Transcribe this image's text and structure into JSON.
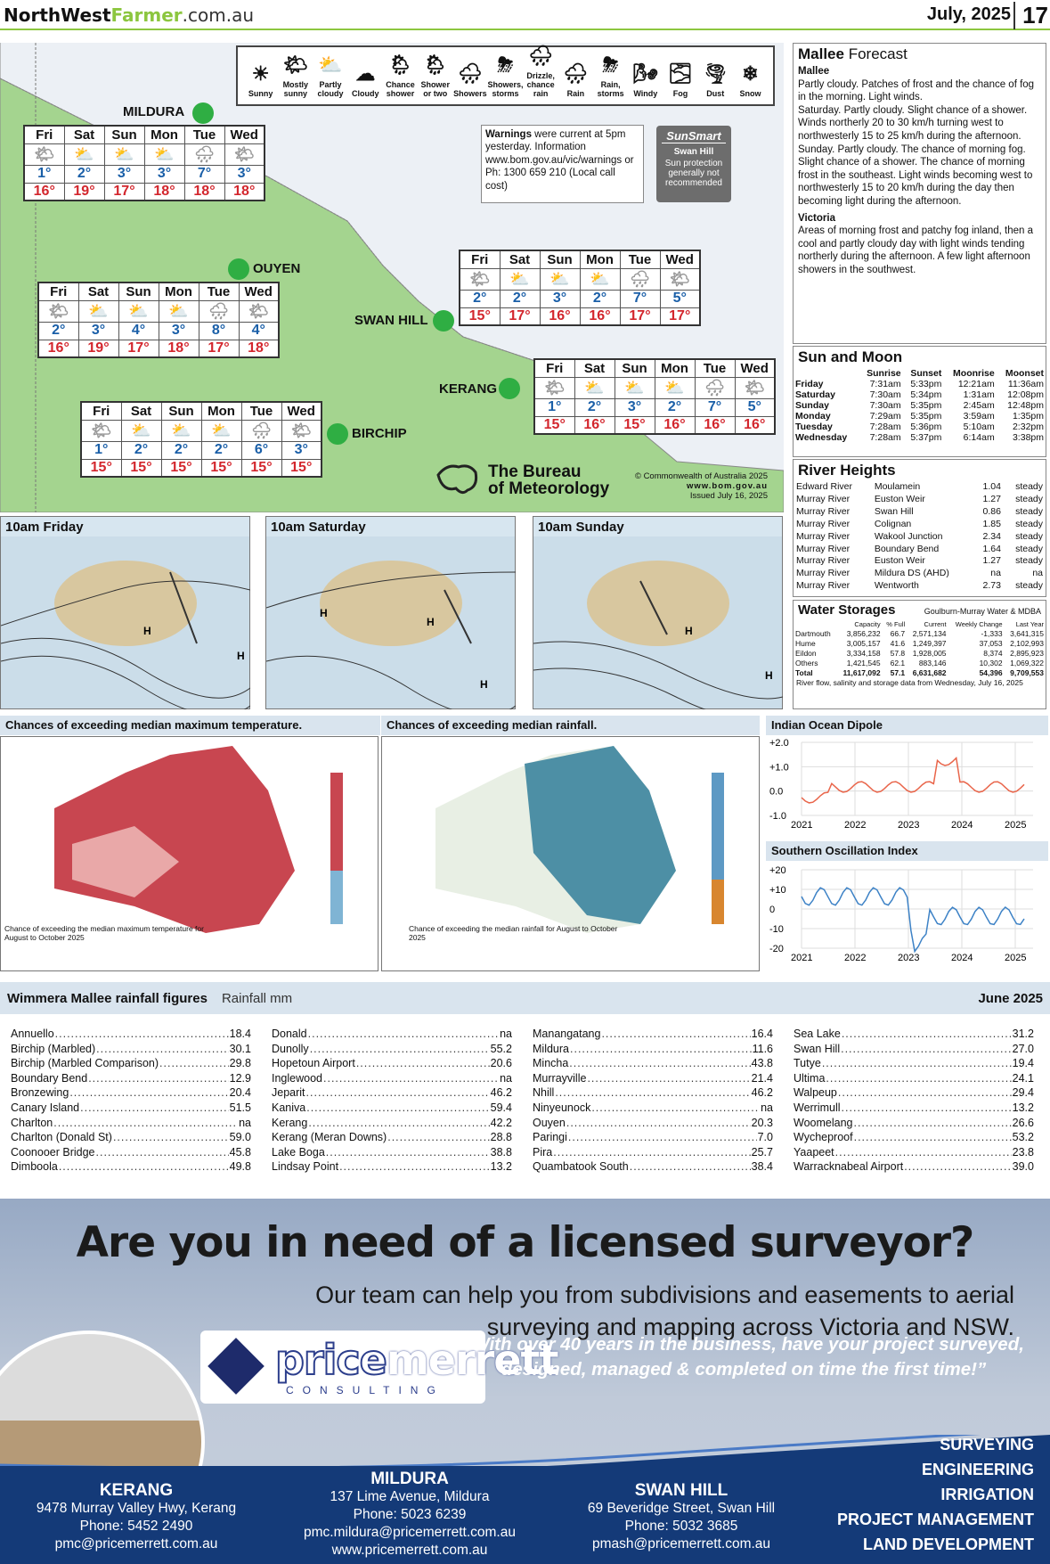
{
  "header": {
    "brand_a": "NorthWest",
    "brand_b": "Farmer",
    "brand_c": ".com.au",
    "date": "July, 2025",
    "page": "17"
  },
  "legend": [
    {
      "icon": "☀",
      "label": "Sunny"
    },
    {
      "icon": "🌤",
      "label": "Mostly sunny"
    },
    {
      "icon": "⛅",
      "label": "Partly cloudy"
    },
    {
      "icon": "☁",
      "label": "Cloudy"
    },
    {
      "icon": "🌦",
      "label": "Chance shower"
    },
    {
      "icon": "🌦",
      "label": "Shower or two"
    },
    {
      "icon": "🌧",
      "label": "Showers"
    },
    {
      "icon": "⛈",
      "label": "Showers, storms"
    },
    {
      "icon": "🌧",
      "label": "Drizzle, chance rain"
    },
    {
      "icon": "🌧",
      "label": "Rain"
    },
    {
      "icon": "⛈",
      "label": "Rain, storms"
    },
    {
      "icon": "🌬",
      "label": "Windy"
    },
    {
      "icon": "🌫",
      "label": "Fog"
    },
    {
      "icon": "🌪",
      "label": "Dust"
    },
    {
      "icon": "❄",
      "label": "Snow"
    }
  ],
  "towns": {
    "mildura": "MILDURA",
    "ouyen": "OUYEN",
    "swanhill": "SWAN HILL",
    "kerang": "KERANG",
    "birchip": "BIRCHIP"
  },
  "days": [
    "Fri",
    "Sat",
    "Sun",
    "Mon",
    "Tue",
    "Wed"
  ],
  "forecast": {
    "mildura": {
      "min": [
        "1°",
        "2°",
        "3°",
        "3°",
        "7°",
        "3°"
      ],
      "max": [
        "16°",
        "19°",
        "17°",
        "18°",
        "18°",
        "18°"
      ]
    },
    "ouyen": {
      "min": [
        "2°",
        "3°",
        "4°",
        "3°",
        "8°",
        "4°"
      ],
      "max": [
        "16°",
        "19°",
        "17°",
        "18°",
        "17°",
        "18°"
      ]
    },
    "swanhill": {
      "min": [
        "2°",
        "2°",
        "3°",
        "2°",
        "7°",
        "5°"
      ],
      "max": [
        "15°",
        "17°",
        "16°",
        "16°",
        "17°",
        "17°"
      ]
    },
    "kerang": {
      "min": [
        "1°",
        "2°",
        "3°",
        "2°",
        "7°",
        "5°"
      ],
      "max": [
        "15°",
        "16°",
        "15°",
        "16°",
        "16°",
        "16°"
      ]
    },
    "birchip": {
      "min": [
        "1°",
        "2°",
        "2°",
        "2°",
        "6°",
        "3°"
      ],
      "max": [
        "15°",
        "15°",
        "15°",
        "15°",
        "15°",
        "15°"
      ]
    }
  },
  "warnings": {
    "bold": "Warnings",
    "text": " were current at 5pm yesterday.  Information www.bom.gov.au/vic/warnings or Ph: 1300 659 210 (Local call cost)"
  },
  "sunsmart": {
    "title": "SunSmart",
    "town": "Swan Hill",
    "text": "Sun protection generally not recommended"
  },
  "bom": {
    "line1": "The Bureau",
    "line2": "of Meteorology",
    "copyright": "© Commonwealth of Australia 2025",
    "url": "www.bom.gov.au",
    "issued": "Issued July 16, 2025"
  },
  "mallee": {
    "title_a": "Mallee",
    "title_b": " Forecast",
    "sub1": "Mallee",
    "text1": "Partly cloudy. Patches of frost and the chance of fog in the morning. Light winds.",
    "text2": "Saturday. Partly cloudy. Slight chance of a shower. Winds northerly 20 to 30 km/h turning west to northwesterly 15 to 25 km/h during the afternoon.",
    "text3": "Sunday. Partly cloudy. The chance of morning fog. Slight chance of a shower. The chance of morning frost in the southeast. Light winds becoming west to northwesterly 15 to 20 km/h during the day then becoming light during the afternoon.",
    "sub2": "Victoria",
    "text4": "Areas of morning frost and patchy fog inland, then a cool and partly cloudy day with light winds tending northerly during the afternoon. A few light afternoon showers in the southwest."
  },
  "sunmoon": {
    "title": "Sun and Moon",
    "cols": [
      "",
      "Sunrise",
      "Sunset",
      "Moonrise",
      "Moonset"
    ],
    "rows": [
      [
        "Friday",
        "7:31am",
        "5:33pm",
        "12:21am",
        "11:36am"
      ],
      [
        "Saturday",
        "7:30am",
        "5:34pm",
        "1:31am",
        "12:08pm"
      ],
      [
        "Sunday",
        "7:30am",
        "5:35pm",
        "2:45am",
        "12:48pm"
      ],
      [
        "Monday",
        "7:29am",
        "5:35pm",
        "3:59am",
        "1:35pm"
      ],
      [
        "Tuesday",
        "7:28am",
        "5:36pm",
        "5:10am",
        "2:32pm"
      ],
      [
        "Wednesday",
        "7:28am",
        "5:37pm",
        "6:14am",
        "3:38pm"
      ]
    ]
  },
  "river": {
    "title": "River Heights",
    "rows": [
      [
        "Edward River",
        "Moulamein",
        "1.04",
        "steady"
      ],
      [
        "Murray River",
        "Euston Weir",
        "1.27",
        "steady"
      ],
      [
        "Murray River",
        "Swan Hill",
        "0.86",
        "steady"
      ],
      [
        "Murray River",
        "Colignan",
        "1.85",
        "steady"
      ],
      [
        "Murray River",
        "Wakool Junction",
        "2.34",
        "steady"
      ],
      [
        "Murray River",
        "Boundary Bend",
        "1.64",
        "steady"
      ],
      [
        "Murray River",
        "Euston Weir",
        "1.27",
        "steady"
      ],
      [
        "Murray River",
        "Mildura DS (AHD)",
        "na",
        "na"
      ],
      [
        "Murray River",
        "Wentworth",
        "2.73",
        "steady"
      ]
    ]
  },
  "storage": {
    "title": "Water Storages",
    "source": "Goulburn-Murray Water & MDBA",
    "cols": [
      "",
      "Capacity",
      "% Full",
      "Current",
      "Weekly Change",
      "Last Year"
    ],
    "rows": [
      [
        "Dartmouth",
        "3,856,232",
        "66.7",
        "2,571,134",
        "-1,333",
        "3,641,315"
      ],
      [
        "Hume",
        "3,005,157",
        "41.6",
        "1,249,397",
        "37,053",
        "2,102,993"
      ],
      [
        "Eildon",
        "3,334,158",
        "57.8",
        "1,928,005",
        "8,374",
        "2,895,923"
      ],
      [
        "Others",
        "1,421,545",
        "62.1",
        "883,146",
        "10,302",
        "1,069,322"
      ],
      [
        "Total",
        "11,617,092",
        "57.1",
        "6,631,682",
        "54,396",
        "9,709,553"
      ]
    ],
    "note": "River flow, salinity and storage data from Wednesday, July 16, 2025"
  },
  "synoptic": [
    "10am Friday",
    "10am Saturday",
    "10am Sunday"
  ],
  "outlook": {
    "max_title": "Chances of exceeding median maximum temperature.",
    "rain_title": "Chances of exceeding median rainfall.",
    "max_caption": "Chance of exceeding the median maximum temperature for August to October 2025",
    "rain_caption": "Chance of exceeding the median rainfall for August to October 2025"
  },
  "iod": {
    "title": "Indian Ocean Dipole",
    "yticks": [
      "+2.0",
      "+1.0",
      "0.0",
      "-1.0"
    ],
    "xticks": [
      "2021",
      "2022",
      "2023",
      "2024",
      "2025"
    ],
    "color": "#e9654a"
  },
  "soi": {
    "title": "Southern Oscillation Index",
    "yticks": [
      "+20",
      "+10",
      "0",
      "-10",
      "-20"
    ],
    "xticks": [
      "2021",
      "2022",
      "2023",
      "2024",
      "2025"
    ],
    "color": "#3d82c6"
  },
  "rainfall": {
    "title": "Wimmera Mallee rainfall figures",
    "unit": "Rainfall mm",
    "month": "June 2025",
    "cols": [
      [
        [
          "Annuello",
          "18.4"
        ],
        [
          "Birchip (Marbled)",
          "30.1"
        ],
        [
          "Birchip (Marbled Comparison)",
          "29.8"
        ],
        [
          "Boundary Bend",
          "12.9"
        ],
        [
          "Bronzewing",
          "20.4"
        ],
        [
          "Canary Island",
          "51.5"
        ],
        [
          "Charlton",
          "na"
        ],
        [
          "Charlton (Donald St)",
          "59.0"
        ],
        [
          "Coonooer Bridge",
          "45.8"
        ],
        [
          "Dimboola",
          "49.8"
        ]
      ],
      [
        [
          "Donald",
          "na"
        ],
        [
          "Dunolly",
          "55.2"
        ],
        [
          "Hopetoun Airport",
          "20.6"
        ],
        [
          "Inglewood",
          "na"
        ],
        [
          "Jeparit",
          "46.2"
        ],
        [
          "Kaniva",
          "59.4"
        ],
        [
          "Kerang",
          "42.2"
        ],
        [
          "Kerang (Meran Downs)",
          "28.8"
        ],
        [
          "Lake Boga",
          "38.8"
        ],
        [
          "Lindsay Point",
          "13.2"
        ]
      ],
      [
        [
          "Manangatang",
          "16.4"
        ],
        [
          "Mildura",
          "11.6"
        ],
        [
          "Mincha",
          "43.8"
        ],
        [
          "Murrayville",
          "21.4"
        ],
        [
          "Nhill",
          "46.2"
        ],
        [
          "Ninyeunock",
          "na"
        ],
        [
          "Ouyen",
          "20.3"
        ],
        [
          "Paringi",
          "7.0"
        ],
        [
          "Pira",
          "25.7"
        ],
        [
          "Quambatook South",
          "38.4"
        ]
      ],
      [
        [
          "Sea Lake",
          "31.2"
        ],
        [
          "Swan Hill",
          "27.0"
        ],
        [
          "Tutye",
          "19.4"
        ],
        [
          "Ultima",
          "24.1"
        ],
        [
          "Walpeup",
          "29.4"
        ],
        [
          "Werrimull",
          "13.2"
        ],
        [
          "Woomelang",
          "26.6"
        ],
        [
          "Wycheproof",
          "53.2"
        ],
        [
          "Yaapeet",
          "23.8"
        ],
        [
          "Warracknabeal Airport",
          "39.0"
        ]
      ]
    ]
  },
  "ad": {
    "headline": "Are you in need of a licensed surveyor?",
    "sub": "Our team can help you from subdivisions and easements to aerial surveying and mapping across Victoria and NSW.",
    "quote": "“With over 40 years in the business, have your project surveyed, designed, managed & completed on time the first time!”",
    "logo_a": "price",
    "logo_b": "merrett",
    "logo_c": "CONSULTING",
    "offices": [
      {
        "town": "KERANG",
        "addr": "9478 Murray Valley Hwy, Kerang",
        "phone": "Phone: 5452 2490",
        "email": "pmc@pricemerrett.com.au"
      },
      {
        "town": "MILDURA",
        "addr": "137 Lime Avenue, Mildura",
        "phone": "Phone: 5023 6239",
        "email": "pmc.mildura@pricemerrett.com.au",
        "web": "www.pricemerrett.com.au"
      },
      {
        "town": "SWAN HILL",
        "addr": "69 Beveridge Street, Swan Hill",
        "phone": "Phone: 5032 3685",
        "email": "pmash@pricemerrett.com.au"
      }
    ],
    "services": [
      "SURVEYING",
      "ENGINEERING",
      "IRRIGATION",
      "PROJECT MANAGEMENT",
      "LAND DEVELOPMENT"
    ]
  }
}
